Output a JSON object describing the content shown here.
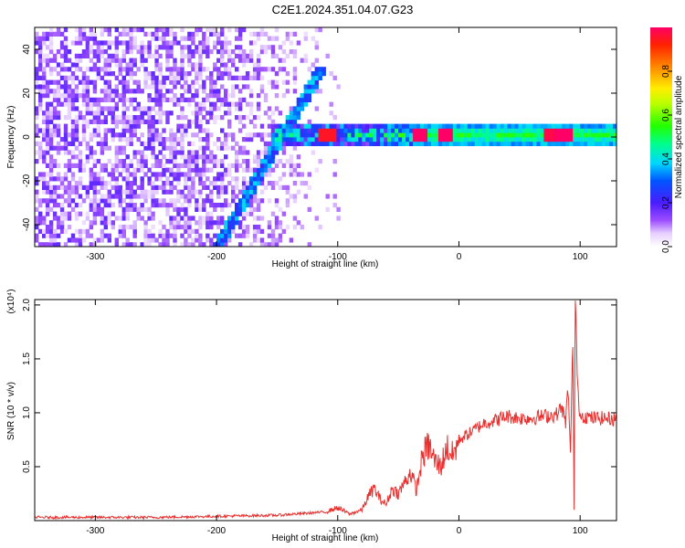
{
  "title": "C2E1.2024.351.04.07.G23",
  "colors": {
    "snr_line": "#e8312f",
    "axis": "#000000",
    "background": "#ffffff"
  },
  "chart_data": [
    {
      "type": "heatmap",
      "xlabel": "Height of straight line (km)",
      "ylabel": "Frequency (Hz)",
      "xlim": [
        -350,
        130
      ],
      "ylim": [
        -50,
        50
      ],
      "x_ticks": [
        -300,
        -200,
        -100,
        0,
        100
      ],
      "y_ticks": [
        -40,
        -20,
        0,
        20,
        40
      ],
      "colorbar": {
        "label": "Normalized spectral amplitude",
        "ticks": [
          0.0,
          0.2,
          0.4,
          0.6,
          0.8
        ],
        "range": [
          0,
          1
        ],
        "colormap": "rainbow"
      },
      "features": [
        {
          "name": "noise",
          "x_range": [
            -350,
            -110
          ],
          "freq_range": [
            -50,
            50
          ],
          "amplitude": 0.1
        },
        {
          "name": "diagonal_track",
          "from": [
            -200,
            -50
          ],
          "to": [
            -115,
            30
          ],
          "amplitude": 0.22
        },
        {
          "name": "main_band",
          "x_range": [
            -155,
            130
          ],
          "freq_center": 0,
          "freq_halfwidth": 5
        },
        {
          "name": "peaks",
          "points": [
            [
              -110,
              0.95
            ],
            [
              -33,
              1.0
            ],
            [
              -12,
              1.0
            ],
            [
              75,
              0.98
            ],
            [
              85,
              1.0
            ]
          ]
        }
      ]
    },
    {
      "type": "line",
      "xlabel": "Height of straight line (km)",
      "ylabel": "SNR (10 * v/v)",
      "y_multiplier_label": "(x10⁴)",
      "xlim": [
        -350,
        130
      ],
      "ylim": [
        0,
        2.05
      ],
      "x_ticks": [
        -300,
        -200,
        -100,
        0,
        100
      ],
      "y_ticks": [
        0.5,
        1.0,
        1.5,
        2.0
      ],
      "series": [
        {
          "x": [
            -350,
            -300,
            -250,
            -200,
            -150,
            -110,
            -100,
            -90,
            -80,
            -75,
            -70,
            -65,
            -60,
            -55,
            -50,
            -45,
            -40,
            -35,
            -30,
            -25,
            -20,
            -15,
            -10,
            -5,
            0,
            10,
            20,
            30,
            40,
            50,
            60,
            70,
            80,
            85,
            88,
            90,
            92,
            94,
            95,
            96,
            98,
            100,
            110,
            120,
            130
          ],
          "y": [
            0.03,
            0.03,
            0.03,
            0.04,
            0.05,
            0.08,
            0.12,
            0.06,
            0.1,
            0.22,
            0.3,
            0.2,
            0.15,
            0.3,
            0.25,
            0.35,
            0.45,
            0.28,
            0.6,
            0.7,
            0.55,
            0.5,
            0.68,
            0.6,
            0.75,
            0.82,
            0.9,
            0.93,
            0.97,
            0.95,
            0.95,
            0.97,
            0.98,
            1.05,
            0.9,
            1.25,
            0.6,
            1.7,
            0.1,
            2.05,
            1.2,
            0.98,
            0.95,
            0.95,
            0.94
          ]
        }
      ]
    }
  ]
}
